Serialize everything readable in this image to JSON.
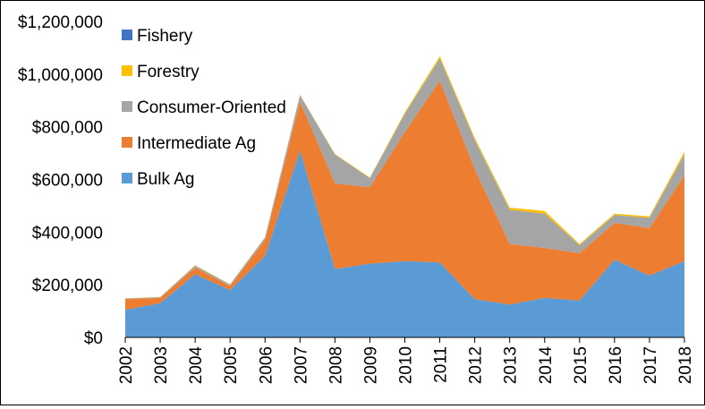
{
  "chart_data": {
    "type": "area",
    "stacked": true,
    "title": "",
    "xlabel": "",
    "ylabel": "",
    "x": [
      "2002",
      "2003",
      "2004",
      "2005",
      "2006",
      "2007",
      "2008",
      "2009",
      "2010",
      "2011",
      "2012",
      "2013",
      "2014",
      "2015",
      "2016",
      "2017",
      "2018"
    ],
    "ylim": [
      0,
      1200000
    ],
    "yticks": [
      0,
      200000,
      400000,
      600000,
      800000,
      1000000,
      1200000
    ],
    "ytick_labels": [
      "$0",
      "$200,000",
      "$400,000",
      "$600,000",
      "$800,000",
      "$1,000,000",
      "$1,200,000"
    ],
    "grid": false,
    "legend_position": "top-left",
    "series": [
      {
        "name": "Bulk Ag",
        "color": "#5B9BD5",
        "values": [
          105000,
          130000,
          240000,
          180000,
          310000,
          710000,
          260000,
          280000,
          290000,
          285000,
          145000,
          125000,
          150000,
          140000,
          295000,
          235000,
          290000
        ]
      },
      {
        "name": "Intermediate Ag",
        "color": "#ED7D31",
        "values": [
          40000,
          20000,
          25000,
          15000,
          60000,
          185000,
          325000,
          290000,
          490000,
          690000,
          495000,
          230000,
          190000,
          180000,
          140000,
          180000,
          325000
        ]
      },
      {
        "name": "Consumer-Oriented",
        "color": "#A5A5A5",
        "values": [
          3000,
          3000,
          8000,
          6000,
          10000,
          25000,
          110000,
          35000,
          70000,
          85000,
          110000,
          130000,
          130000,
          30000,
          30000,
          40000,
          80000
        ]
      },
      {
        "name": "Forestry",
        "color": "#FFC000",
        "values": [
          1000,
          1000,
          1000,
          1000,
          1000,
          2000,
          2000,
          2000,
          5000,
          8000,
          8000,
          8000,
          10000,
          5000,
          5000,
          5000,
          10000
        ]
      },
      {
        "name": "Fishery",
        "color": "#4472C4",
        "values": [
          0,
          0,
          0,
          0,
          0,
          0,
          0,
          0,
          0,
          0,
          0,
          0,
          0,
          0,
          0,
          0,
          0
        ]
      }
    ],
    "legend_order": [
      "Fishery",
      "Forestry",
      "Consumer-Oriented",
      "Intermediate Ag",
      "Bulk Ag"
    ]
  }
}
